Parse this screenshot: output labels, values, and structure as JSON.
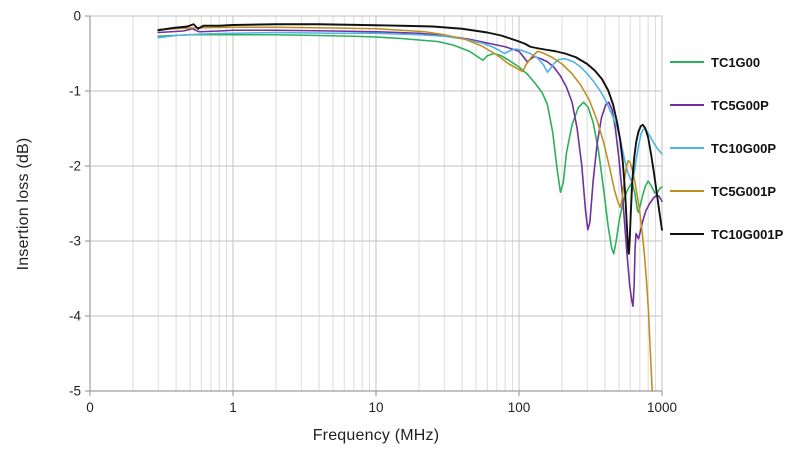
{
  "chart_data": {
    "type": "line",
    "title": "",
    "xlabel": "Frequency (MHz)",
    "ylabel": "Insertion loss (dB)",
    "x_scale": "log",
    "x_range": [
      0.1,
      1000
    ],
    "y_range": [
      -5,
      0
    ],
    "grid": {
      "minor_color": "#dcdcdc",
      "major_color": "#c2c2c2",
      "axis_color": "#9e9e9e",
      "background": "#ffffff"
    },
    "legend_position": "right",
    "x_ticks": [
      {
        "f": 0.1,
        "label": "0"
      },
      {
        "f": 1,
        "label": "1"
      },
      {
        "f": 10,
        "label": "10"
      },
      {
        "f": 100,
        "label": "100"
      },
      {
        "f": 1000,
        "label": "1000"
      }
    ],
    "y_ticks": [
      {
        "v": 0,
        "label": "0"
      },
      {
        "v": -1,
        "label": "-1"
      },
      {
        "v": -2,
        "label": "-2"
      },
      {
        "v": -3,
        "label": "-3"
      },
      {
        "v": -4,
        "label": "-4"
      },
      {
        "v": -5,
        "label": "-5"
      }
    ],
    "series": [
      {
        "name": "TC1G00",
        "color": "#2cb05c",
        "width": 1.6,
        "points": [
          [
            0.3,
            -0.27
          ],
          [
            0.5,
            -0.25
          ],
          [
            1,
            -0.25
          ],
          [
            2,
            -0.25
          ],
          [
            4,
            -0.26
          ],
          [
            7,
            -0.27
          ],
          [
            10,
            -0.28
          ],
          [
            15,
            -0.3
          ],
          [
            20,
            -0.32
          ],
          [
            27,
            -0.34
          ],
          [
            35,
            -0.39
          ],
          [
            45,
            -0.47
          ],
          [
            52,
            -0.55
          ],
          [
            56,
            -0.59
          ],
          [
            60,
            -0.53
          ],
          [
            67,
            -0.5
          ],
          [
            75,
            -0.53
          ],
          [
            85,
            -0.59
          ],
          [
            100,
            -0.68
          ],
          [
            115,
            -0.78
          ],
          [
            130,
            -0.9
          ],
          [
            145,
            -1.02
          ],
          [
            158,
            -1.18
          ],
          [
            172,
            -1.55
          ],
          [
            185,
            -2.05
          ],
          [
            195,
            -2.35
          ],
          [
            204,
            -2.22
          ],
          [
            215,
            -1.82
          ],
          [
            235,
            -1.45
          ],
          [
            260,
            -1.22
          ],
          [
            283,
            -1.15
          ],
          [
            305,
            -1.22
          ],
          [
            330,
            -1.42
          ],
          [
            360,
            -1.8
          ],
          [
            390,
            -2.3
          ],
          [
            420,
            -2.8
          ],
          [
            445,
            -3.1
          ],
          [
            460,
            -3.17
          ],
          [
            478,
            -3.0
          ],
          [
            505,
            -2.7
          ],
          [
            540,
            -2.45
          ],
          [
            580,
            -2.3
          ],
          [
            620,
            -2.22
          ],
          [
            648,
            -2.38
          ],
          [
            672,
            -2.58
          ],
          [
            685,
            -2.62
          ],
          [
            700,
            -2.55
          ],
          [
            730,
            -2.4
          ],
          [
            765,
            -2.27
          ],
          [
            800,
            -2.2
          ],
          [
            845,
            -2.27
          ],
          [
            890,
            -2.36
          ],
          [
            930,
            -2.35
          ],
          [
            965,
            -2.3
          ],
          [
            1000,
            -2.28
          ]
        ]
      },
      {
        "name": "TC5G00P",
        "color": "#7030a0",
        "width": 1.6,
        "points": [
          [
            0.3,
            -0.22
          ],
          [
            0.45,
            -0.2
          ],
          [
            0.52,
            -0.17
          ],
          [
            0.58,
            -0.21
          ],
          [
            0.8,
            -0.2
          ],
          [
            1,
            -0.19
          ],
          [
            2,
            -0.19
          ],
          [
            5,
            -0.2
          ],
          [
            10,
            -0.21
          ],
          [
            20,
            -0.23
          ],
          [
            30,
            -0.26
          ],
          [
            45,
            -0.31
          ],
          [
            60,
            -0.36
          ],
          [
            80,
            -0.41
          ],
          [
            100,
            -0.47
          ],
          [
            108,
            -0.55
          ],
          [
            114,
            -0.61
          ],
          [
            120,
            -0.58
          ],
          [
            128,
            -0.54
          ],
          [
            142,
            -0.57
          ],
          [
            158,
            -0.61
          ],
          [
            175,
            -0.68
          ],
          [
            195,
            -0.8
          ],
          [
            215,
            -0.95
          ],
          [
            235,
            -1.15
          ],
          [
            255,
            -1.5
          ],
          [
            275,
            -2.0
          ],
          [
            292,
            -2.6
          ],
          [
            303,
            -2.85
          ],
          [
            313,
            -2.75
          ],
          [
            330,
            -2.2
          ],
          [
            352,
            -1.7
          ],
          [
            378,
            -1.35
          ],
          [
            405,
            -1.18
          ],
          [
            425,
            -1.15
          ],
          [
            448,
            -1.25
          ],
          [
            472,
            -1.5
          ],
          [
            500,
            -1.9
          ],
          [
            532,
            -2.45
          ],
          [
            565,
            -3.1
          ],
          [
            595,
            -3.6
          ],
          [
            615,
            -3.8
          ],
          [
            627,
            -3.87
          ],
          [
            638,
            -3.6
          ],
          [
            648,
            -3.1
          ],
          [
            658,
            -2.9
          ],
          [
            670,
            -2.93
          ],
          [
            685,
            -2.97
          ],
          [
            700,
            -2.9
          ],
          [
            730,
            -2.75
          ],
          [
            770,
            -2.6
          ],
          [
            820,
            -2.5
          ],
          [
            870,
            -2.43
          ],
          [
            915,
            -2.39
          ],
          [
            950,
            -2.4
          ],
          [
            1000,
            -2.47
          ]
        ]
      },
      {
        "name": "TC10G00P",
        "color": "#4fb3e4",
        "width": 1.6,
        "points": [
          [
            0.3,
            -0.29
          ],
          [
            0.4,
            -0.26
          ],
          [
            0.6,
            -0.24
          ],
          [
            1,
            -0.23
          ],
          [
            2,
            -0.22
          ],
          [
            5,
            -0.23
          ],
          [
            10,
            -0.23
          ],
          [
            20,
            -0.25
          ],
          [
            30,
            -0.27
          ],
          [
            42,
            -0.31
          ],
          [
            55,
            -0.36
          ],
          [
            65,
            -0.41
          ],
          [
            73,
            -0.46
          ],
          [
            79,
            -0.5
          ],
          [
            87,
            -0.46
          ],
          [
            95,
            -0.44
          ],
          [
            105,
            -0.46
          ],
          [
            120,
            -0.5
          ],
          [
            135,
            -0.56
          ],
          [
            148,
            -0.65
          ],
          [
            158,
            -0.75
          ],
          [
            166,
            -0.7
          ],
          [
            176,
            -0.63
          ],
          [
            190,
            -0.58
          ],
          [
            210,
            -0.57
          ],
          [
            240,
            -0.61
          ],
          [
            270,
            -0.68
          ],
          [
            300,
            -0.77
          ],
          [
            335,
            -0.88
          ],
          [
            370,
            -1.0
          ],
          [
            410,
            -1.15
          ],
          [
            450,
            -1.33
          ],
          [
            485,
            -1.48
          ],
          [
            515,
            -1.68
          ],
          [
            545,
            -1.9
          ],
          [
            575,
            -2.08
          ],
          [
            600,
            -2.17
          ],
          [
            618,
            -2.2
          ],
          [
            638,
            -2.1
          ],
          [
            662,
            -1.9
          ],
          [
            690,
            -1.7
          ],
          [
            715,
            -1.57
          ],
          [
            735,
            -1.52
          ],
          [
            760,
            -1.5
          ],
          [
            795,
            -1.55
          ],
          [
            835,
            -1.62
          ],
          [
            880,
            -1.7
          ],
          [
            930,
            -1.77
          ],
          [
            1000,
            -1.84
          ]
        ]
      },
      {
        "name": "TC5G001P",
        "color": "#bf9021",
        "width": 1.6,
        "points": [
          [
            0.3,
            -0.18
          ],
          [
            0.5,
            -0.16
          ],
          [
            1,
            -0.15
          ],
          [
            2,
            -0.15
          ],
          [
            5,
            -0.16
          ],
          [
            10,
            -0.17
          ],
          [
            15,
            -0.19
          ],
          [
            22,
            -0.21
          ],
          [
            30,
            -0.25
          ],
          [
            42,
            -0.31
          ],
          [
            55,
            -0.4
          ],
          [
            70,
            -0.52
          ],
          [
            85,
            -0.64
          ],
          [
            97,
            -0.7
          ],
          [
            106,
            -0.74
          ],
          [
            112,
            -0.65
          ],
          [
            122,
            -0.55
          ],
          [
            135,
            -0.47
          ],
          [
            150,
            -0.5
          ],
          [
            170,
            -0.55
          ],
          [
            200,
            -0.64
          ],
          [
            235,
            -0.77
          ],
          [
            270,
            -0.92
          ],
          [
            310,
            -1.12
          ],
          [
            350,
            -1.38
          ],
          [
            390,
            -1.68
          ],
          [
            430,
            -2.02
          ],
          [
            465,
            -2.32
          ],
          [
            490,
            -2.47
          ],
          [
            510,
            -2.55
          ],
          [
            525,
            -2.45
          ],
          [
            545,
            -2.2
          ],
          [
            565,
            -2.0
          ],
          [
            580,
            -1.93
          ],
          [
            598,
            -1.95
          ],
          [
            620,
            -2.05
          ],
          [
            645,
            -2.2
          ],
          [
            672,
            -2.4
          ],
          [
            700,
            -2.62
          ],
          [
            728,
            -2.9
          ],
          [
            755,
            -3.2
          ],
          [
            780,
            -3.55
          ],
          [
            805,
            -3.95
          ],
          [
            825,
            -4.4
          ],
          [
            842,
            -4.75
          ],
          [
            855,
            -5.0
          ]
        ]
      },
      {
        "name": "TC10G001P",
        "color": "#111111",
        "width": 1.9,
        "points": [
          [
            0.3,
            -0.19
          ],
          [
            0.38,
            -0.16
          ],
          [
            0.48,
            -0.14
          ],
          [
            0.53,
            -0.11
          ],
          [
            0.57,
            -0.17
          ],
          [
            0.62,
            -0.13
          ],
          [
            0.8,
            -0.13
          ],
          [
            1,
            -0.12
          ],
          [
            2,
            -0.11
          ],
          [
            4,
            -0.11
          ],
          [
            8,
            -0.12
          ],
          [
            15,
            -0.13
          ],
          [
            25,
            -0.14
          ],
          [
            40,
            -0.17
          ],
          [
            60,
            -0.22
          ],
          [
            75,
            -0.26
          ],
          [
            90,
            -0.31
          ],
          [
            100,
            -0.34
          ],
          [
            110,
            -0.37
          ],
          [
            120,
            -0.41
          ],
          [
            135,
            -0.43
          ],
          [
            155,
            -0.45
          ],
          [
            180,
            -0.47
          ],
          [
            210,
            -0.5
          ],
          [
            250,
            -0.55
          ],
          [
            300,
            -0.64
          ],
          [
            340,
            -0.73
          ],
          [
            380,
            -0.84
          ],
          [
            420,
            -0.99
          ],
          [
            455,
            -1.18
          ],
          [
            485,
            -1.42
          ],
          [
            510,
            -1.65
          ],
          [
            532,
            -1.95
          ],
          [
            552,
            -2.35
          ],
          [
            568,
            -2.8
          ],
          [
            580,
            -3.1
          ],
          [
            586,
            -3.17
          ],
          [
            594,
            -3.0
          ],
          [
            606,
            -2.6
          ],
          [
            620,
            -2.2
          ],
          [
            638,
            -1.9
          ],
          [
            660,
            -1.68
          ],
          [
            685,
            -1.54
          ],
          [
            710,
            -1.47
          ],
          [
            735,
            -1.45
          ],
          [
            765,
            -1.5
          ],
          [
            800,
            -1.62
          ],
          [
            840,
            -1.85
          ],
          [
            880,
            -2.1
          ],
          [
            925,
            -2.4
          ],
          [
            965,
            -2.65
          ],
          [
            1000,
            -2.85
          ]
        ]
      }
    ]
  }
}
